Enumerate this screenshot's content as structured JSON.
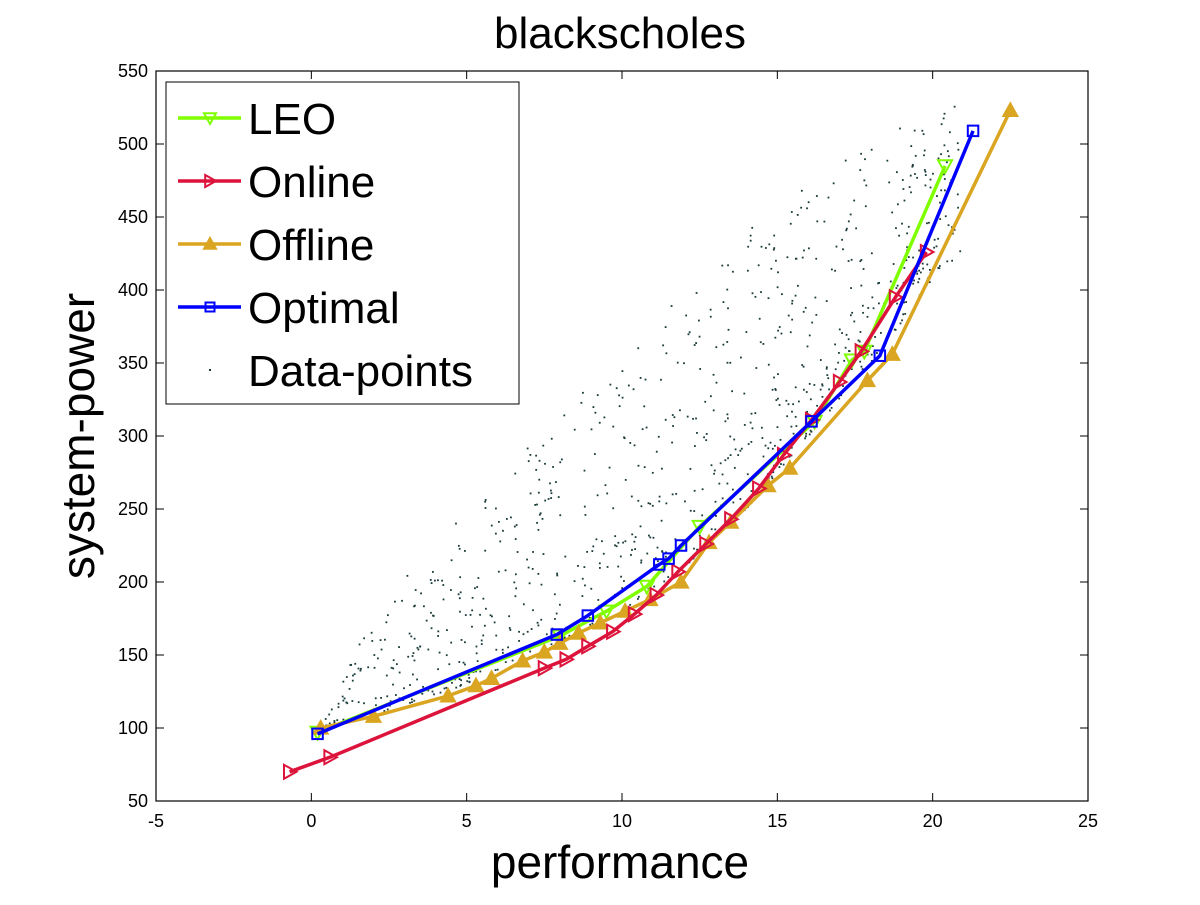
{
  "chart_data": {
    "type": "line",
    "title": "blackscholes",
    "xlabel": "performance",
    "ylabel": "system-power",
    "xlim": [
      -5,
      25
    ],
    "ylim": [
      50,
      550
    ],
    "xticks": [
      -5,
      0,
      5,
      10,
      15,
      20,
      25
    ],
    "yticks": [
      50,
      100,
      150,
      200,
      250,
      300,
      350,
      400,
      450,
      500,
      550
    ],
    "grid": false,
    "legend_position": "top-left",
    "series": [
      {
        "name": "LEO",
        "color": "#7fff00",
        "marker": "triangle-down",
        "x": [
          0.2,
          8.0,
          9.5,
          10.8,
          12.5,
          16.2,
          17.4,
          17.8,
          20.4
        ],
        "y": [
          97,
          163,
          180,
          197,
          238,
          310,
          352,
          358,
          485
        ]
      },
      {
        "name": "Online",
        "color": "#dc143c",
        "marker": "triangle-right",
        "x": [
          -0.7,
          0.6,
          7.5,
          8.2,
          8.9,
          9.7,
          10.4,
          11.1,
          11.8,
          12.7,
          13.5,
          14.4,
          15.2,
          16.1,
          17.0,
          17.7,
          18.8,
          19.8
        ],
        "y": [
          70,
          80,
          141,
          147,
          156,
          166,
          178,
          191,
          207,
          226,
          243,
          264,
          287,
          311,
          337,
          358,
          395,
          426
        ]
      },
      {
        "name": "Offline",
        "color": "#daa520",
        "marker": "triangle-up",
        "x": [
          0.3,
          2.0,
          4.4,
          5.3,
          5.8,
          6.8,
          7.5,
          8.0,
          8.6,
          9.3,
          10.1,
          10.9,
          11.9,
          12.8,
          13.5,
          14.7,
          15.4,
          17.9,
          18.7,
          22.5
        ],
        "y": [
          100,
          108,
          122,
          129,
          134,
          146,
          152,
          158,
          165,
          172,
          180,
          188,
          200,
          227,
          241,
          266,
          278,
          338,
          356,
          523
        ]
      },
      {
        "name": "Optimal",
        "color": "#0000ff",
        "marker": "square",
        "x": [
          0.2,
          7.9,
          8.9,
          11.2,
          11.5,
          11.9,
          16.1,
          18.3,
          21.3
        ],
        "y": [
          96,
          164,
          177,
          212,
          216,
          225,
          310,
          355,
          509
        ]
      },
      {
        "name": "Data-points",
        "color": "#1a3a3a",
        "marker": "dot",
        "x": [],
        "y": []
      }
    ]
  }
}
